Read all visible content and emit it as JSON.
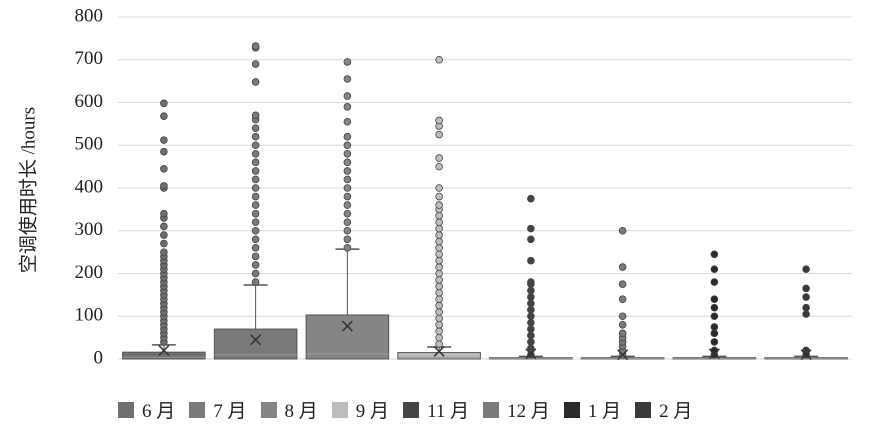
{
  "chart_data": {
    "type": "box",
    "y_label": "空调使用时长 /hours",
    "ylim": [
      0,
      800
    ],
    "yticks": [
      0,
      100,
      200,
      300,
      400,
      500,
      600,
      700,
      800
    ],
    "grid": true,
    "legend": "bottom",
    "series": [
      {
        "name": "6 月",
        "color": "#6e6e6e",
        "min": 0,
        "q1": 0,
        "median": 4,
        "q3": 16,
        "max": 33,
        "mean": 20,
        "outliers": [
          40,
          50,
          60,
          70,
          80,
          90,
          100,
          110,
          120,
          130,
          140,
          150,
          160,
          170,
          180,
          190,
          200,
          210,
          220,
          230,
          240,
          250,
          270,
          290,
          310,
          330,
          340,
          400,
          405,
          445,
          485,
          512,
          568,
          598
        ]
      },
      {
        "name": "7 月",
        "color": "#7a7a7a",
        "min": 0,
        "q1": 0,
        "median": 10,
        "q3": 70,
        "max": 173,
        "mean": 45,
        "outliers": [
          180,
          200,
          220,
          240,
          260,
          280,
          300,
          320,
          340,
          360,
          380,
          400,
          420,
          440,
          460,
          480,
          500,
          520,
          540,
          560,
          570,
          648,
          690,
          728,
          732
        ]
      },
      {
        "name": "8 月",
        "color": "#858585",
        "min": 0,
        "q1": 0,
        "median": 12,
        "q3": 103,
        "max": 257,
        "mean": 77,
        "outliers": [
          260,
          280,
          300,
          320,
          340,
          360,
          380,
          400,
          420,
          440,
          460,
          480,
          500,
          520,
          555,
          590,
          615,
          655,
          695
        ]
      },
      {
        "name": "9 月",
        "color": "#bdbdbd",
        "min": 0,
        "q1": 0,
        "median": 4,
        "q3": 15,
        "max": 28,
        "mean": 18,
        "outliers": [
          35,
          50,
          65,
          80,
          95,
          110,
          125,
          140,
          155,
          170,
          185,
          200,
          215,
          230,
          245,
          260,
          275,
          290,
          305,
          320,
          335,
          350,
          360,
          380,
          400,
          450,
          470,
          525,
          545,
          558,
          700
        ]
      },
      {
        "name": "11 月",
        "color": "#444444",
        "min": 0,
        "q1": 0,
        "median": 1,
        "q3": 3,
        "max": 6,
        "mean": 12,
        "outliers": [
          10,
          25,
          40,
          55,
          70,
          85,
          100,
          115,
          130,
          145,
          160,
          175,
          180,
          230,
          280,
          305,
          375
        ]
      },
      {
        "name": "12 月",
        "color": "#7a7a7a",
        "min": 0,
        "q1": 0,
        "median": 1,
        "q3": 3,
        "max": 6,
        "mean": 10,
        "outliers": [
          10,
          20,
          30,
          40,
          50,
          60,
          80,
          100,
          140,
          175,
          215,
          300
        ]
      },
      {
        "name": "1 月",
        "color": "#2a2a2a",
        "min": 0,
        "q1": 0,
        "median": 1,
        "q3": 3,
        "max": 6,
        "mean": 12,
        "outliers": [
          10,
          20,
          40,
          60,
          75,
          100,
          120,
          140,
          180,
          210,
          245
        ]
      },
      {
        "name": "2 月",
        "color": "#3a3a3a",
        "min": 0,
        "q1": 0,
        "median": 1,
        "q3": 3,
        "max": 6,
        "mean": 10,
        "outliers": [
          10,
          20,
          105,
          120,
          145,
          165,
          210
        ]
      }
    ]
  }
}
